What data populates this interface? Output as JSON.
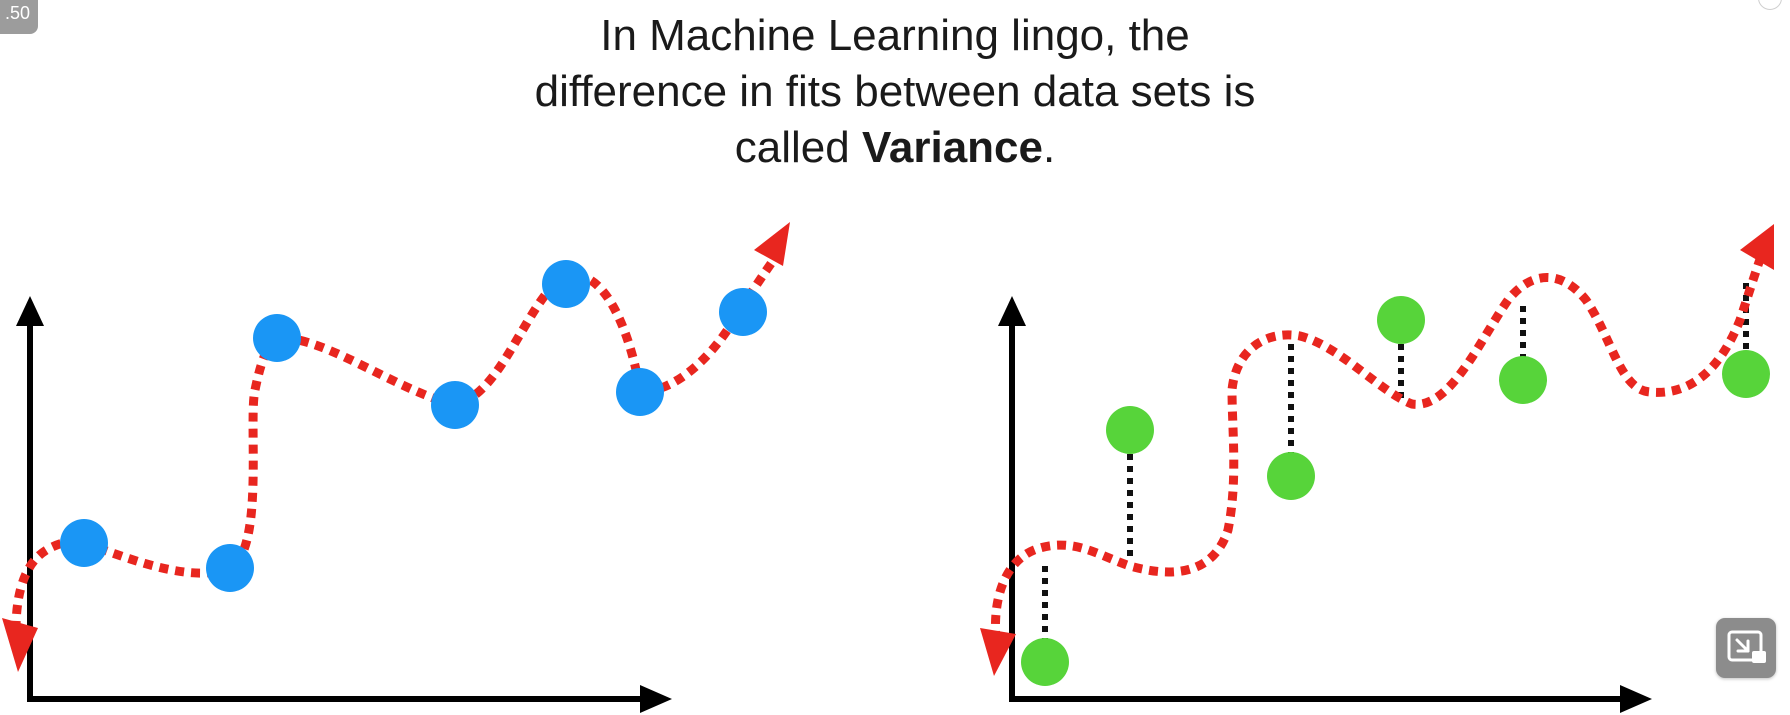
{
  "badge": {
    "text": ".50"
  },
  "caption": {
    "line1": "In Machine Learning lingo, the",
    "line2": "difference in fits between data sets is",
    "line3_prefix": "called ",
    "line3_bold": "Variance",
    "line3_suffix": "."
  },
  "colors": {
    "fit_curve": "#e8261f",
    "axis": "#000000",
    "training_points": "#1a96f5",
    "testing_points": "#57d43a",
    "residual_lines": "#111111"
  },
  "icons": {
    "pip_button": "picture-in-picture-exit-icon"
  }
}
